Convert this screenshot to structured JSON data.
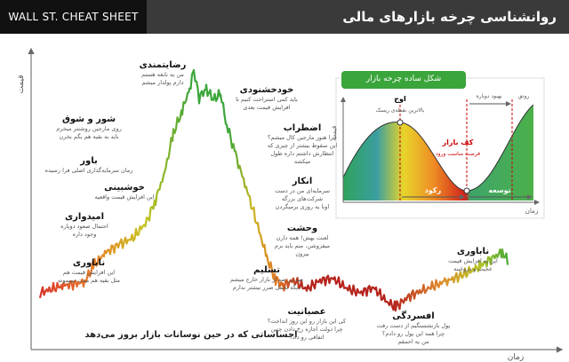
{
  "header": {
    "brand": "WALL ST. CHEAT SHEET",
    "title": "روانشناسی چرخه بازارهای مالی"
  },
  "axes": {
    "y": "قیمت",
    "x": "زمان"
  },
  "caption": "احساساتی که در حین نوسانات بازار بروز می‌دهد",
  "stages": [
    {
      "title": "ناباوری",
      "lines": [
        "این افزایش قیمت هم",
        "مثل بقیه هم مدت نمیمونه"
      ]
    },
    {
      "title": "امیدواری",
      "lines": [
        "احتمال صعود دوباره",
        "وجود داره"
      ]
    },
    {
      "title": "خوشبینی",
      "lines": [
        "این افزایش قیمت واقعیه"
      ]
    },
    {
      "title": "باور",
      "lines": [
        "زمان سرمایه‌گذاری اصلی فرا رسیده"
      ]
    },
    {
      "title": "شور و شوق",
      "lines": [
        "روی مارجین روشنتر میخرم",
        "باید به بقیه هم بگم بخرن"
      ]
    },
    {
      "title": "رضایتمندی",
      "lines": [
        "من یه نابغه هستم",
        "دارم پولدار میشم"
      ]
    },
    {
      "title": "خودخشنودی",
      "lines": [
        "باید کمی استراحت کنیم تا",
        "افزایش قیمت بعدی"
      ]
    },
    {
      "title": "اضطراب",
      "lines": [
        "چرا هنوز مارجین کال میشم؟",
        "این سقوط بیشتر از چیزی که",
        "انتظارش داشتم داره طول",
        "میکشه"
      ]
    },
    {
      "title": "انکار",
      "lines": [
        "سرمایه‌ای من در دست",
        "شرکت‌های بزرگه",
        "اونا یه روزی برمیگردن"
      ]
    },
    {
      "title": "وحشت",
      "lines": [
        "لعنت بهش! همه دارن",
        "میفروشن، منم باید برم",
        "بیرون"
      ]
    },
    {
      "title": "تسلیم",
      "lines": [
        "صد در صد از بازار خارج میشم",
        "دیگه تحمل ضرر بیشتر ندارم"
      ]
    },
    {
      "title": "عصبانیت",
      "lines": [
        "کی این بازار رو این روز انداخت؟",
        "چرا دولت اجازه رخ دادن چنین",
        "اتفاقی رو داد؟"
      ]
    },
    {
      "title": "افسردگی",
      "lines": [
        "پول بازنشستگیم از دست رفت",
        "چرا همه این پول رو دادم؟",
        "من یه احمقم"
      ]
    },
    {
      "title": "ناباوری",
      "lines": [
        "این یه افزایش قیمت",
        "عجیب و دروغینه"
      ]
    }
  ],
  "inset": {
    "title": "شکل ساده چرخه بازار",
    "peak": "اوج",
    "peak_note": "بالاترین نقطه‌ی ریسک",
    "recovery": "بهبود دوباره",
    "boom": "رونق",
    "bottom": "کف بازار",
    "bottom_note": "فرصت مناسب ورود",
    "recession": "رکود",
    "expansion": "توسعه",
    "y": "قیمت",
    "x": "زمان"
  }
}
